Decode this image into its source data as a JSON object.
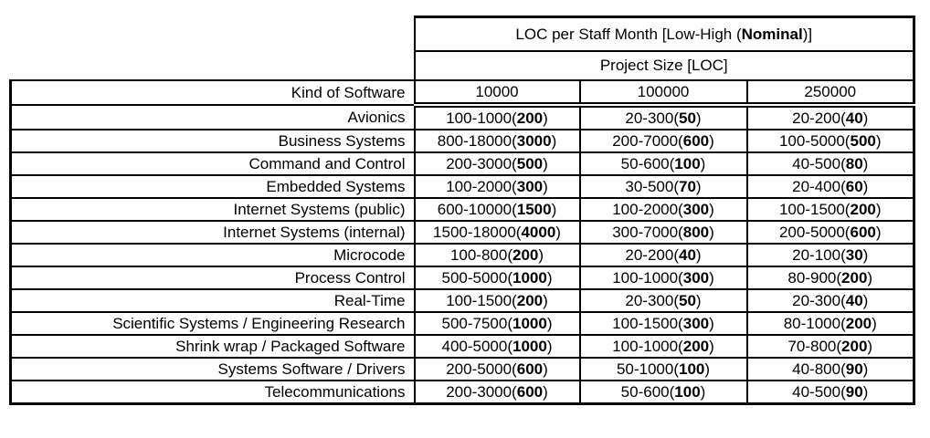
{
  "table": {
    "title": {
      "prefix": "LOC per Staff Month [Low-High (",
      "bold": "Nominal",
      "suffix": ")]"
    },
    "subtitle": "Project Size [LOC]",
    "row_header": "Kind of Software",
    "columns": [
      "10000",
      "100000",
      "250000"
    ],
    "rows": [
      {
        "label": "Avionics",
        "values": [
          {
            "range": "100-1000",
            "nominal": "200"
          },
          {
            "range": "20-300",
            "nominal": "50"
          },
          {
            "range": "20-200",
            "nominal": "40"
          }
        ]
      },
      {
        "label": "Business Systems",
        "values": [
          {
            "range": "800-18000",
            "nominal": "3000"
          },
          {
            "range": "200-7000",
            "nominal": "600"
          },
          {
            "range": "100-5000",
            "nominal": "500"
          }
        ]
      },
      {
        "label": "Command and Control",
        "values": [
          {
            "range": "200-3000",
            "nominal": "500"
          },
          {
            "range": "50-600",
            "nominal": "100"
          },
          {
            "range": "40-500",
            "nominal": "80"
          }
        ]
      },
      {
        "label": "Embedded Systems",
        "values": [
          {
            "range": "100-2000",
            "nominal": "300"
          },
          {
            "range": "30-500",
            "nominal": "70"
          },
          {
            "range": "20-400",
            "nominal": "60"
          }
        ]
      },
      {
        "label": "Internet Systems (public)",
        "values": [
          {
            "range": "600-10000",
            "nominal": "1500"
          },
          {
            "range": "100-2000",
            "nominal": "300"
          },
          {
            "range": "100-1500",
            "nominal": "200"
          }
        ]
      },
      {
        "label": "Internet Systems (internal)",
        "values": [
          {
            "range": "1500-18000",
            "nominal": "4000"
          },
          {
            "range": "300-7000",
            "nominal": "800"
          },
          {
            "range": "200-5000",
            "nominal": "600"
          }
        ]
      },
      {
        "label": "Microcode",
        "values": [
          {
            "range": "100-800",
            "nominal": "200"
          },
          {
            "range": "20-200",
            "nominal": "40"
          },
          {
            "range": "20-100",
            "nominal": "30"
          }
        ]
      },
      {
        "label": "Process Control",
        "values": [
          {
            "range": "500-5000",
            "nominal": "1000"
          },
          {
            "range": "100-1000",
            "nominal": "300"
          },
          {
            "range": "80-900",
            "nominal": "200"
          }
        ]
      },
      {
        "label": "Real-Time",
        "values": [
          {
            "range": "100-1500",
            "nominal": "200"
          },
          {
            "range": "20-300",
            "nominal": "50"
          },
          {
            "range": "20-300",
            "nominal": "40"
          }
        ]
      },
      {
        "label": "Scientific Systems / Engineering Research",
        "values": [
          {
            "range": "500-7500",
            "nominal": "1000"
          },
          {
            "range": "100-1500",
            "nominal": "300"
          },
          {
            "range": "80-1000",
            "nominal": "200"
          }
        ]
      },
      {
        "label": "Shrink wrap / Packaged Software",
        "values": [
          {
            "range": "400-5000",
            "nominal": "1000"
          },
          {
            "range": "100-1000",
            "nominal": "200"
          },
          {
            "range": "70-800",
            "nominal": "200"
          }
        ]
      },
      {
        "label": "Systems Software / Drivers",
        "values": [
          {
            "range": "200-5000",
            "nominal": "600"
          },
          {
            "range": "50-1000",
            "nominal": "100"
          },
          {
            "range": "40-800",
            "nominal": "90"
          }
        ]
      },
      {
        "label": "Telecommunications",
        "values": [
          {
            "range": "200-3000",
            "nominal": "600"
          },
          {
            "range": "50-600",
            "nominal": "100"
          },
          {
            "range": "40-500",
            "nominal": "90"
          }
        ]
      }
    ],
    "colors": {
      "border": "#000000",
      "text": "#000000",
      "background": "#ffffff"
    }
  }
}
